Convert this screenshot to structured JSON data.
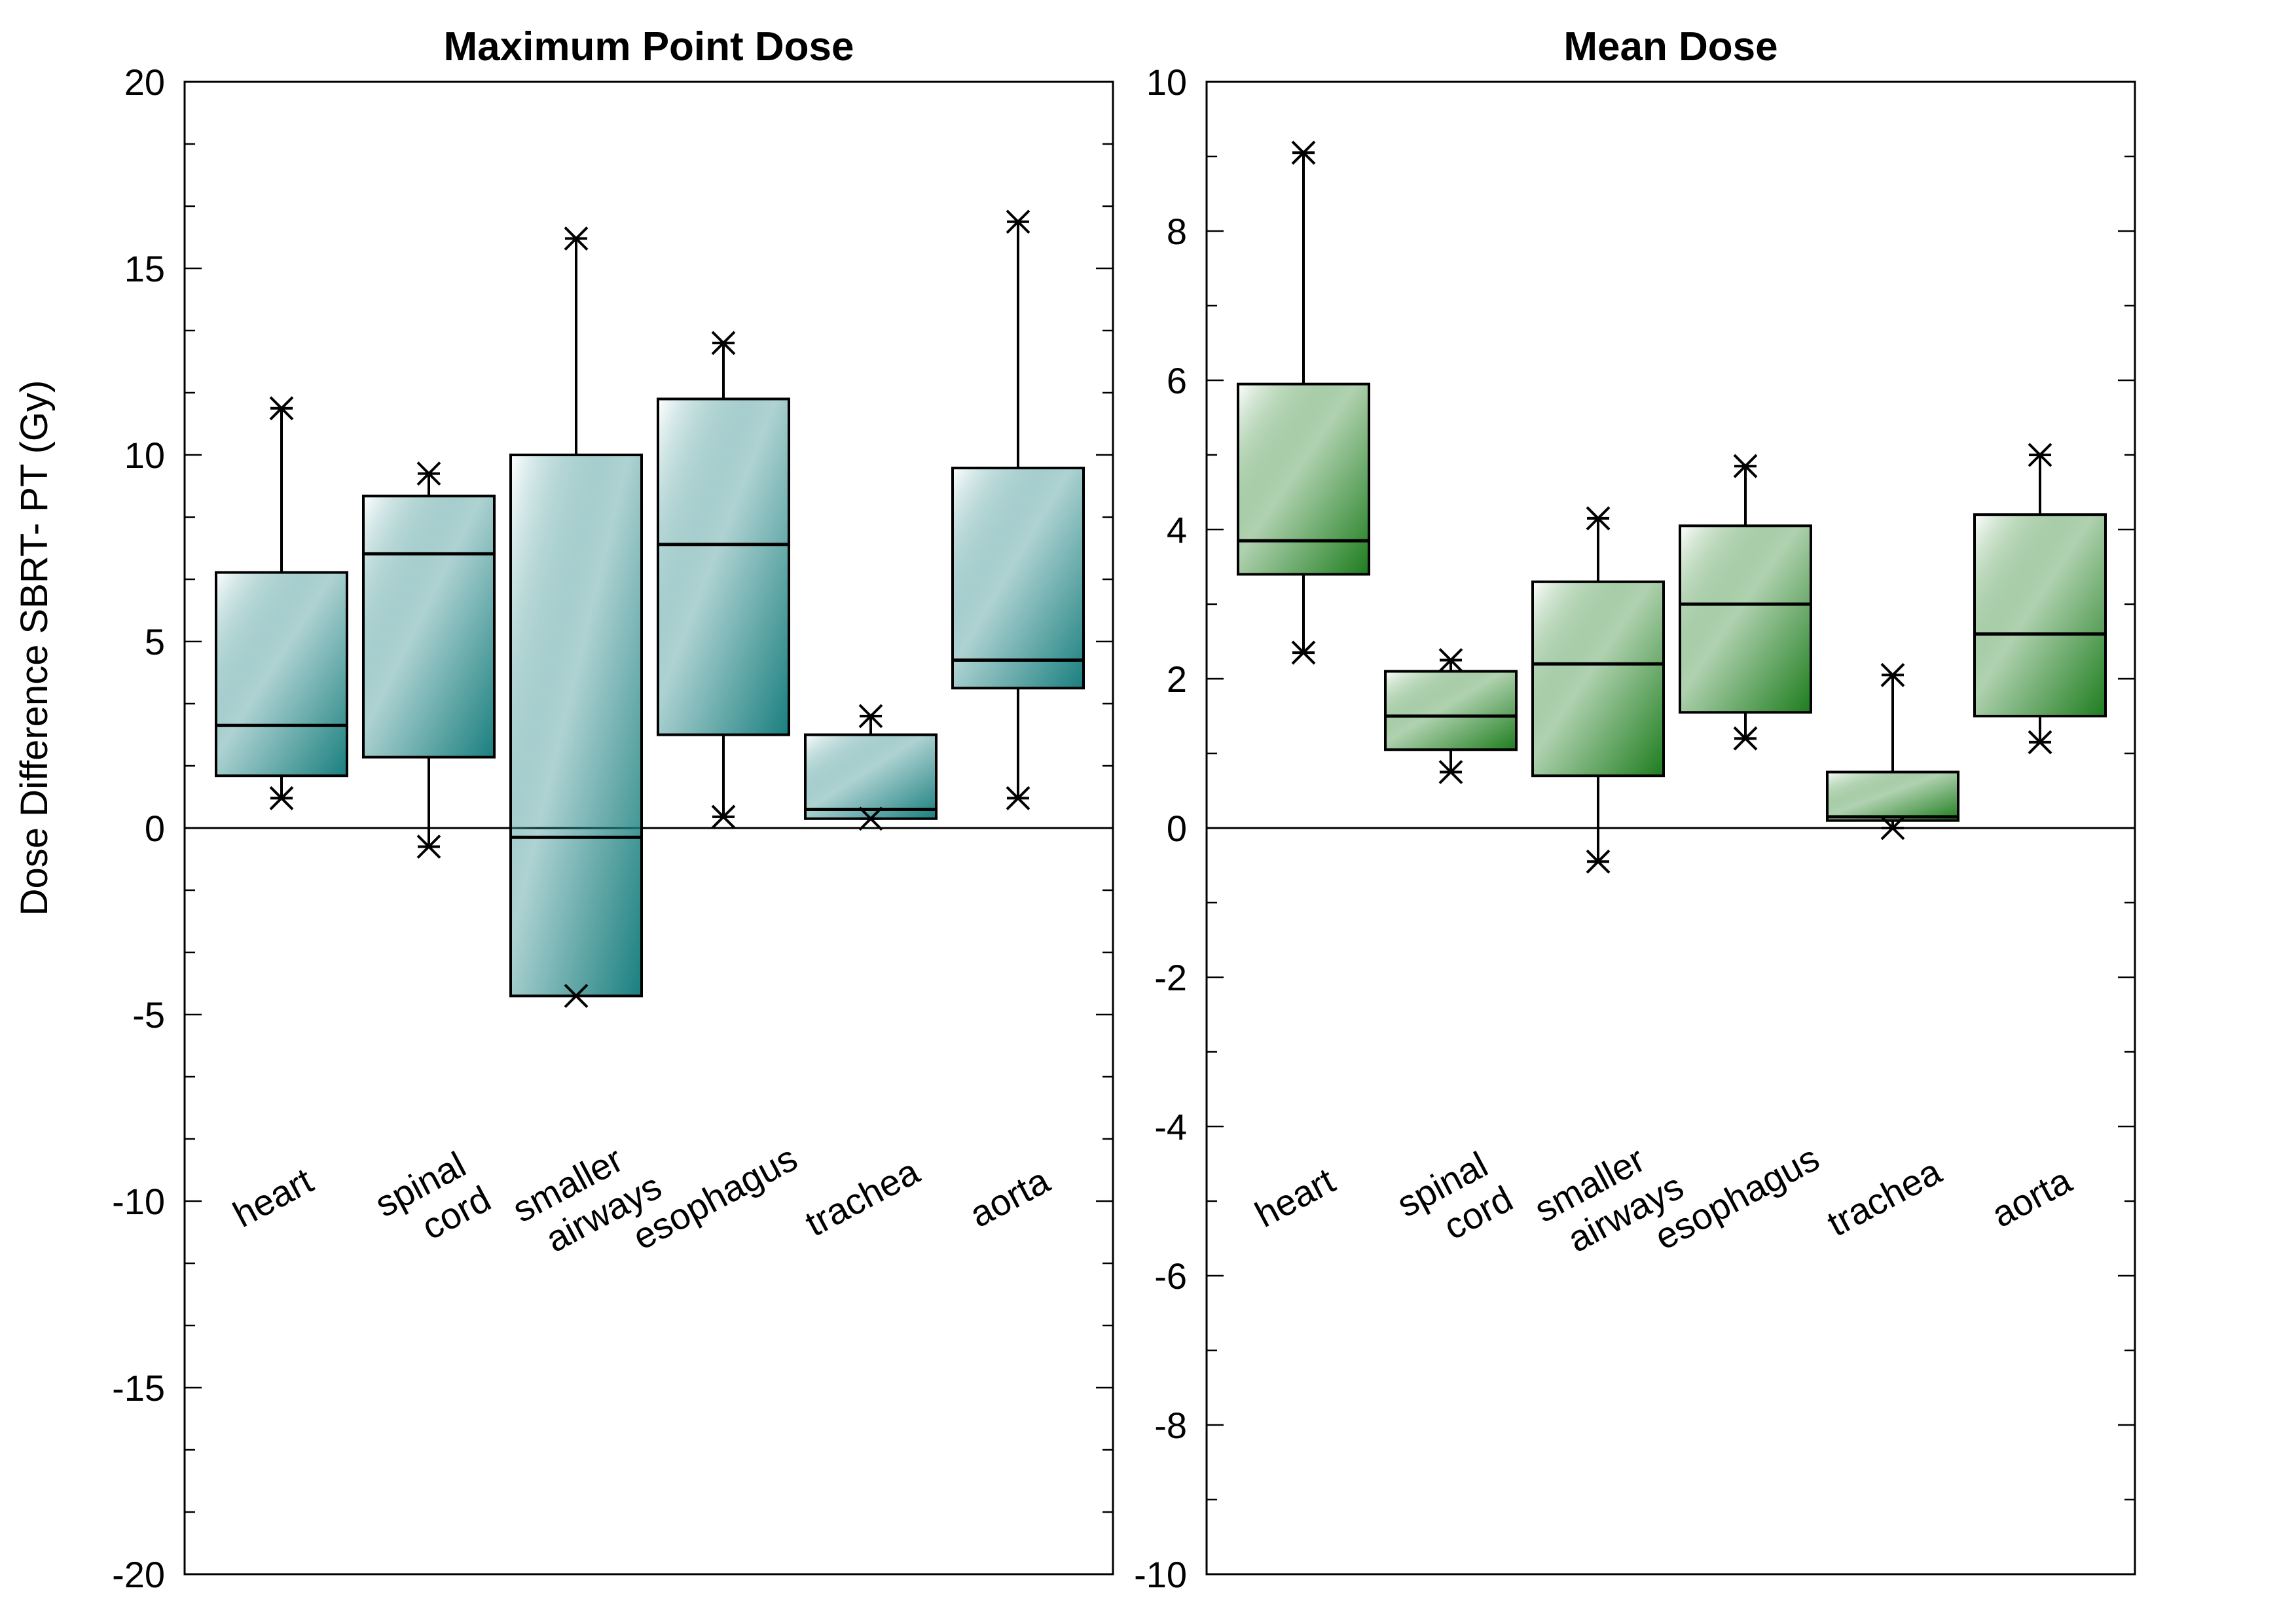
{
  "chart_data": [
    {
      "type": "box",
      "title": "Maximum Point Dose",
      "ylabel": "Dose Difference SBRT- PT (Gy)",
      "ylim": [
        -20,
        20
      ],
      "yticks": [
        "20",
        "15",
        "10",
        "5",
        "0",
        "-5",
        "-10",
        "-15",
        "-20"
      ],
      "ytick_values": [
        20,
        15,
        10,
        5,
        0,
        -5,
        -10,
        -15,
        -20
      ],
      "fill_color": "#1a7f7f",
      "categories": [
        [
          "heart"
        ],
        [
          "spinal",
          "cord"
        ],
        [
          "smaller",
          "airways"
        ],
        [
          "esophagus"
        ],
        [
          "trachea"
        ],
        [
          "aorta"
        ]
      ],
      "boxes": [
        {
          "min": 0.8,
          "q1": 1.4,
          "median": 2.75,
          "q3": 6.85,
          "max": 11.25
        },
        {
          "min": -0.5,
          "q1": 1.9,
          "median": 7.35,
          "q3": 8.9,
          "max": 9.5
        },
        {
          "min": -4.5,
          "q1": -4.5,
          "median": -0.25,
          "q3": 10.0,
          "max": 15.8
        },
        {
          "min": 0.3,
          "q1": 2.5,
          "median": 7.6,
          "q3": 11.5,
          "max": 13.0
        },
        {
          "min": 0.25,
          "q1": 0.25,
          "median": 0.5,
          "q3": 2.5,
          "max": 3.0
        },
        {
          "min": 0.8,
          "q1": 3.75,
          "median": 4.5,
          "q3": 9.65,
          "max": 16.25
        }
      ]
    },
    {
      "type": "box",
      "title": "Mean Dose",
      "ylim": [
        -10,
        10
      ],
      "yticks": [
        "10",
        "8",
        "6",
        "4",
        "2",
        "0",
        "-2",
        "-4",
        "-6",
        "-8",
        "-10"
      ],
      "ytick_values": [
        10,
        8,
        6,
        4,
        2,
        0,
        -2,
        -4,
        -6,
        -8,
        -10
      ],
      "fill_color": "#1e7d1e",
      "categories": [
        [
          "heart"
        ],
        [
          "spinal",
          "cord"
        ],
        [
          "smaller",
          "airways"
        ],
        [
          "esophagus"
        ],
        [
          "trachea"
        ],
        [
          "aorta"
        ]
      ],
      "boxes": [
        {
          "min": 2.35,
          "q1": 3.4,
          "median": 3.85,
          "q3": 5.95,
          "max": 9.05
        },
        {
          "min": 0.75,
          "q1": 1.05,
          "median": 1.5,
          "q3": 2.1,
          "max": 2.25
        },
        {
          "min": -0.45,
          "q1": 0.7,
          "median": 2.2,
          "q3": 3.3,
          "max": 4.15
        },
        {
          "min": 1.2,
          "q1": 1.55,
          "median": 3.0,
          "q3": 4.05,
          "max": 4.85
        },
        {
          "min": 0.0,
          "q1": 0.1,
          "median": 0.15,
          "q3": 0.75,
          "max": 2.05
        },
        {
          "min": 1.15,
          "q1": 1.5,
          "median": 2.6,
          "q3": 4.2,
          "max": 5.0
        }
      ]
    }
  ]
}
